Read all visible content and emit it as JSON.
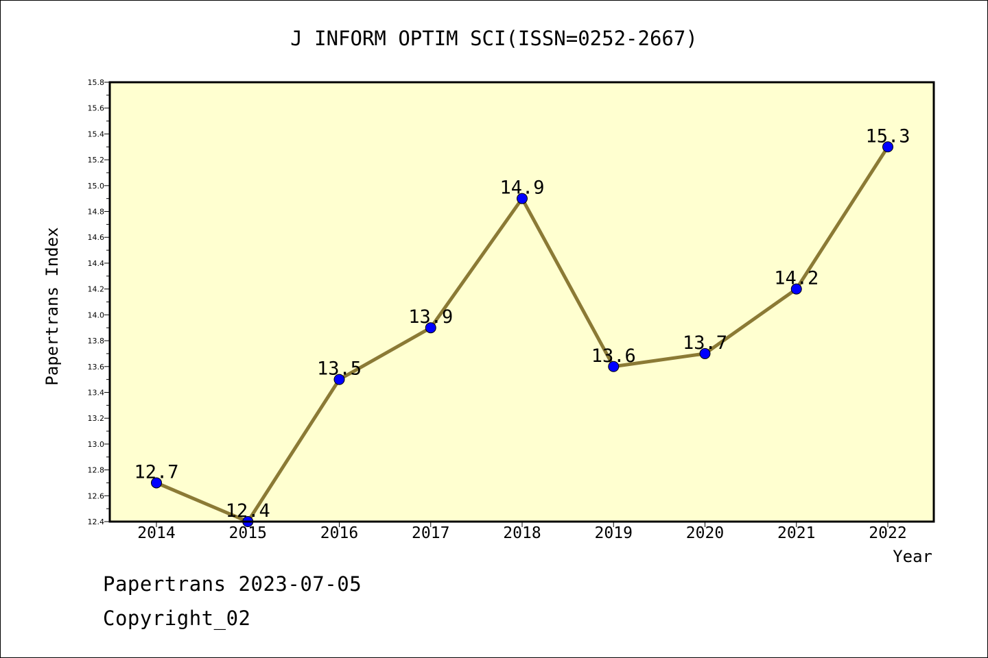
{
  "chart_data": {
    "type": "line",
    "title": "J INFORM OPTIM SCI(ISSN=0252-2667)",
    "xlabel": "Year",
    "ylabel": "Papertrans Index",
    "categories": [
      "2014",
      "2015",
      "2016",
      "2017",
      "2018",
      "2019",
      "2020",
      "2021",
      "2022"
    ],
    "values": [
      12.7,
      12.4,
      13.5,
      13.9,
      14.9,
      13.6,
      13.7,
      14.2,
      15.3
    ],
    "data_labels": [
      "12.7",
      "12.4",
      "13.5",
      "13.9",
      "14.9",
      "13.6",
      "13.7",
      "14.2",
      "15.3"
    ],
    "ylim": [
      12.4,
      15.8
    ],
    "yticks": [
      "12.4",
      "12.6",
      "12.8",
      "13.0",
      "13.2",
      "13.4",
      "13.6",
      "13.8",
      "14.0",
      "14.2",
      "14.4",
      "14.6",
      "14.8",
      "15.0",
      "15.2",
      "15.4",
      "15.6",
      "15.8"
    ],
    "grid": false,
    "legend": "none",
    "colors": {
      "plot_background": "#FFFFD0",
      "line": "#8B7A35",
      "marker": "#0000FF",
      "axis": "#000000"
    }
  },
  "footer": {
    "line1": "Papertrans 2023-07-05",
    "line2": "Copyright_02"
  }
}
